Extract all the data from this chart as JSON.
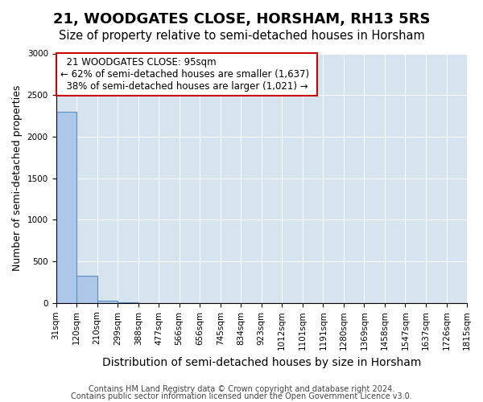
{
  "title": "21, WOODGATES CLOSE, HORSHAM, RH13 5RS",
  "subtitle": "Size of property relative to semi-detached houses in Horsham",
  "xlabel": "Distribution of semi-detached houses by size in Horsham",
  "ylabel": "Number of semi-detached properties",
  "footer_line1": "Contains HM Land Registry data © Crown copyright and database right 2024.",
  "footer_line2": "Contains public sector information licensed under the Open Government Licence v3.0.",
  "annotation_title": "21 WOODGATES CLOSE: 95sqm",
  "annotation_line1": "← 62% of semi-detached houses are smaller (1,637)",
  "annotation_line2": "38% of semi-detached houses are larger (1,021) →",
  "bar_edges": [
    31,
    120,
    210,
    299,
    388,
    477,
    566,
    656,
    745,
    834,
    923,
    1012,
    1101,
    1191,
    1280,
    1369,
    1458,
    1547,
    1637,
    1726,
    1815
  ],
  "bar_labels": [
    "31sqm",
    "120sqm",
    "210sqm",
    "299sqm",
    "388sqm",
    "477sqm",
    "566sqm",
    "656sqm",
    "745sqm",
    "834sqm",
    "923sqm",
    "1012sqm",
    "1101sqm",
    "1191sqm",
    "1280sqm",
    "1369sqm",
    "1458sqm",
    "1547sqm",
    "1637sqm",
    "1726sqm",
    "1815sqm"
  ],
  "bar_values": [
    2300,
    330,
    30,
    3,
    1,
    0,
    0,
    0,
    0,
    0,
    0,
    0,
    0,
    0,
    0,
    0,
    0,
    0,
    0,
    0
  ],
  "bar_color": "#aec6e8",
  "bar_edge_color": "#5a8fc0",
  "ylim": [
    0,
    3000
  ],
  "yticks": [
    0,
    500,
    1000,
    1500,
    2000,
    2500,
    3000
  ],
  "annotation_box_color": "#cc0000",
  "background_color": "#ffffff",
  "grid_color": "#d6e4f0",
  "title_fontsize": 13,
  "subtitle_fontsize": 10.5,
  "axis_label_fontsize": 9,
  "tick_fontsize": 7.5,
  "annotation_fontsize": 8.5,
  "footer_fontsize": 7
}
